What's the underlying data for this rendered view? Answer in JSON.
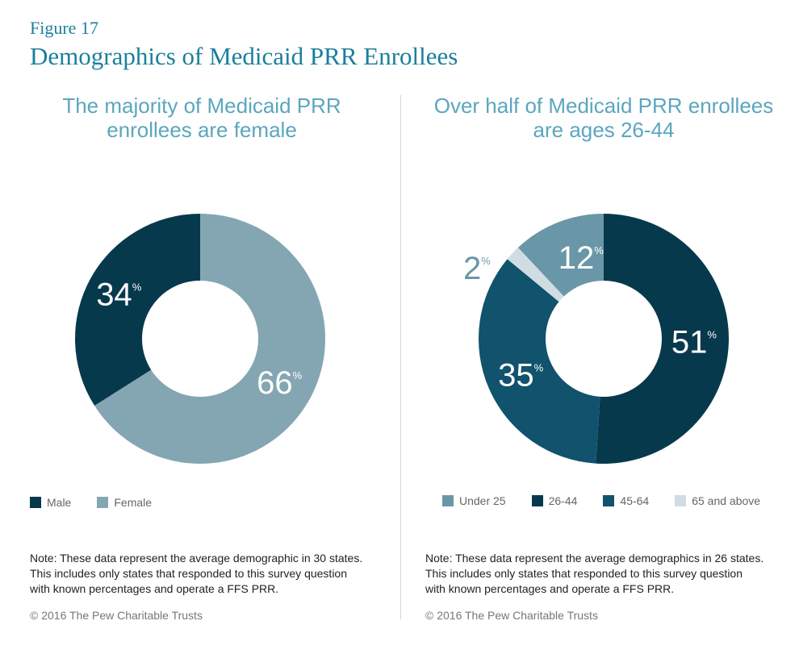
{
  "figure_label": "Figure 17",
  "title": "Demographics of Medicaid PRR Enrollees",
  "chart_data": [
    {
      "type": "pie",
      "subtitle": "The majority of Medicaid PRR enrollees are female",
      "categories": [
        "Male",
        "Female"
      ],
      "values": [
        34,
        66
      ],
      "colors": [
        "#07394d",
        "#84a6b3"
      ],
      "order_clockwise_from_top": [
        "Female",
        "Male"
      ],
      "labels": [
        "34",
        "66"
      ],
      "note": "Note: These data represent the average demographic in 30 states. This includes only states that responded to this survey question with known percentages and operate a FFS PRR.",
      "copyright": "© 2016 The Pew Charitable Trusts"
    },
    {
      "type": "pie",
      "subtitle": "Over half of Medicaid PRR enrollees are ages 26-44",
      "categories": [
        "Under 25",
        "26-44",
        "45-64",
        "65 and above"
      ],
      "values": [
        12,
        51,
        35,
        2
      ],
      "colors": [
        "#6a97a7",
        "#07394d",
        "#11526d",
        "#cfdde3"
      ],
      "order_clockwise_from_top": [
        "26-44",
        "45-64",
        "65 and above",
        "Under 25"
      ],
      "labels": [
        "12",
        "51",
        "35",
        "2"
      ],
      "note": "Note: These data represent the average demographics in 26 states. This includes only states that responded to this survey question with known percentages and operate a FFS PRR.",
      "copyright": "© 2016 The Pew Charitable Trusts"
    }
  ],
  "pct_symbol": "%"
}
